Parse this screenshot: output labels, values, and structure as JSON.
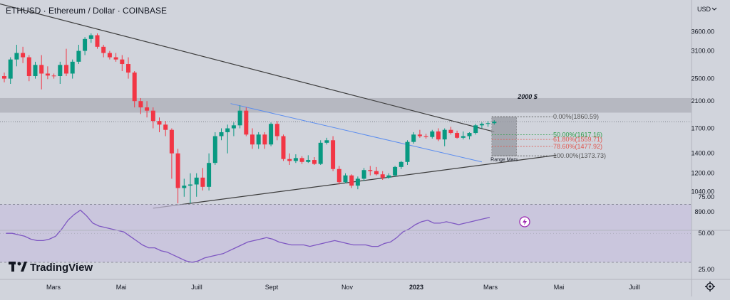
{
  "header": {
    "title": "ETHUSD · Ethereum / Dollar · COINBASE",
    "currency": "USD"
  },
  "logo": {
    "text": "TradingView"
  },
  "colors": {
    "up": "#089981",
    "down": "#f23645",
    "trendline": "#3d3d3d",
    "channel": "#5b8def",
    "rsi": "#7e57c2",
    "zone": "#b2b5be"
  },
  "chart_data": {
    "type": "candlestick",
    "price_axis": {
      "scale": "log",
      "ticks": [
        3600,
        3100,
        2500,
        2100,
        1700,
        1400,
        1200,
        1040,
        890
      ],
      "tick_labels": [
        "3600.00",
        "3100.00",
        "2500.00",
        "2100.00",
        "1700.00",
        "1400.00",
        "1200.00",
        "1040.00",
        "890.00"
      ],
      "ylim": [
        775,
        4600
      ]
    },
    "time_axis": {
      "labels": [
        "Mars",
        "Mai",
        "Juill",
        "Sept",
        "Nov",
        "2023",
        "Mars",
        "Mai",
        "Juill"
      ],
      "bold": [
        false,
        false,
        false,
        false,
        false,
        true,
        false,
        false,
        false
      ]
    },
    "candles": [
      [
        2550,
        2620,
        2430,
        2500
      ],
      [
        2500,
        2950,
        2400,
        2900
      ],
      [
        2900,
        3250,
        2750,
        3050
      ],
      [
        3050,
        3200,
        2820,
        2950
      ],
      [
        2950,
        3000,
        2450,
        2550
      ],
      [
        2550,
        2850,
        2500,
        2780
      ],
      [
        2780,
        3000,
        2300,
        2600
      ],
      [
        2600,
        2750,
        2490,
        2560
      ],
      [
        2560,
        2600,
        2500,
        2550
      ],
      [
        2550,
        2850,
        2400,
        2780
      ],
      [
        2780,
        3150,
        2550,
        2600
      ],
      [
        2600,
        2900,
        2500,
        2850
      ],
      [
        2850,
        3250,
        2800,
        3100
      ],
      [
        3100,
        3450,
        3000,
        3400
      ],
      [
        3400,
        3550,
        3300,
        3500
      ],
      [
        3500,
        3550,
        3150,
        3200
      ],
      [
        3200,
        3250,
        2950,
        3050
      ],
      [
        3050,
        3100,
        2900,
        2950
      ],
      [
        2950,
        3050,
        2850,
        2900
      ],
      [
        2900,
        3000,
        2650,
        2800
      ],
      [
        2800,
        2950,
        2500,
        2620
      ],
      [
        2620,
        2650,
        2000,
        2100
      ],
      [
        2100,
        2150,
        1900,
        2000
      ],
      [
        2000,
        2100,
        1850,
        1950
      ],
      [
        1950,
        2000,
        1700,
        1800
      ],
      [
        1800,
        1850,
        1650,
        1750
      ],
      [
        1750,
        1800,
        1600,
        1680
      ],
      [
        1680,
        1700,
        1150,
        1400
      ],
      [
        1400,
        1450,
        950,
        1070
      ],
      [
        1070,
        1150,
        1000,
        1090
      ],
      [
        1090,
        1200,
        950,
        1100
      ],
      [
        1100,
        1200,
        1000,
        1160
      ],
      [
        1160,
        1250,
        1050,
        1080
      ],
      [
        1080,
        1400,
        1050,
        1300
      ],
      [
        1300,
        1650,
        1280,
        1600
      ],
      [
        1600,
        1700,
        1550,
        1650
      ],
      [
        1650,
        1750,
        1400,
        1700
      ],
      [
        1700,
        1780,
        1600,
        1740
      ],
      [
        1740,
        2030,
        1700,
        1950
      ],
      [
        1950,
        2000,
        1600,
        1620
      ],
      [
        1620,
        1700,
        1450,
        1500
      ],
      [
        1500,
        1650,
        1450,
        1620
      ],
      [
        1620,
        1650,
        1450,
        1500
      ],
      [
        1500,
        1780,
        1480,
        1760
      ],
      [
        1760,
        1800,
        1550,
        1600
      ],
      [
        1600,
        1620,
        1320,
        1340
      ],
      [
        1340,
        1400,
        1280,
        1320
      ],
      [
        1320,
        1390,
        1300,
        1350
      ],
      [
        1350,
        1370,
        1290,
        1310
      ],
      [
        1310,
        1380,
        1300,
        1330
      ],
      [
        1330,
        1360,
        1280,
        1290
      ],
      [
        1290,
        1550,
        1280,
        1520
      ],
      [
        1520,
        1580,
        1500,
        1550
      ],
      [
        1550,
        1600,
        1220,
        1240
      ],
      [
        1240,
        1270,
        1100,
        1120
      ],
      [
        1120,
        1200,
        1110,
        1180
      ],
      [
        1180,
        1190,
        1070,
        1090
      ],
      [
        1090,
        1170,
        1060,
        1150
      ],
      [
        1150,
        1250,
        1130,
        1230
      ],
      [
        1230,
        1270,
        1180,
        1220
      ],
      [
        1220,
        1260,
        1180,
        1190
      ],
      [
        1190,
        1220,
        1140,
        1160
      ],
      [
        1160,
        1200,
        1150,
        1180
      ],
      [
        1180,
        1270,
        1170,
        1260
      ],
      [
        1260,
        1320,
        1240,
        1310
      ],
      [
        1310,
        1550,
        1280,
        1530
      ],
      [
        1530,
        1650,
        1510,
        1620
      ],
      [
        1620,
        1680,
        1580,
        1600
      ],
      [
        1600,
        1630,
        1570,
        1590
      ],
      [
        1590,
        1680,
        1570,
        1660
      ],
      [
        1660,
        1700,
        1540,
        1560
      ],
      [
        1560,
        1700,
        1480,
        1680
      ],
      [
        1680,
        1720,
        1620,
        1640
      ],
      [
        1640,
        1670,
        1570,
        1580
      ],
      [
        1580,
        1660,
        1560,
        1600
      ],
      [
        1600,
        1650,
        1560,
        1640
      ],
      [
        1640,
        1760,
        1620,
        1740
      ],
      [
        1740,
        1780,
        1700,
        1760
      ],
      [
        1760,
        1800,
        1720,
        1770
      ],
      [
        1770,
        1810,
        1750,
        1790
      ]
    ],
    "resistance_zone": {
      "low": 1920,
      "high": 2150
    },
    "annotations": [
      {
        "label": "2000 $",
        "price": 2150
      },
      {
        "label": "Range Mars",
        "price": 1340
      }
    ],
    "fibonacci": [
      {
        "label": "0.00%(1860.59)",
        "price": 1860.59,
        "color": "#555555"
      },
      {
        "label": "50.00%(1617.16)",
        "price": 1617.16,
        "color": "#2e9f4a"
      },
      {
        "label": "61.80%(1559.71)",
        "price": 1559.71,
        "color": "#e0574f"
      },
      {
        "label": "78.60%(1477.92)",
        "price": 1477.92,
        "color": "#e0574f"
      },
      {
        "label": "100.00%(1373.73)",
        "price": 1373.73,
        "color": "#555555"
      }
    ],
    "rsi": {
      "ticks": [
        75,
        50,
        25
      ],
      "tick_labels": [
        "75.00",
        "50.00",
        "25.00"
      ],
      "levels": [
        70,
        30
      ],
      "values": [
        50,
        50,
        49,
        48,
        46,
        45,
        45,
        46,
        48,
        53,
        59,
        63,
        66,
        62,
        57,
        55,
        54,
        53,
        52,
        51,
        48,
        45,
        42,
        40,
        40,
        38,
        37,
        35,
        33,
        31,
        30,
        31,
        33,
        34,
        35,
        36,
        38,
        40,
        42,
        44,
        45,
        46,
        47,
        46,
        44,
        43,
        42,
        42,
        42,
        41,
        42,
        43,
        44,
        45,
        44,
        43,
        42,
        42,
        42,
        41,
        41,
        43,
        44,
        47,
        51,
        53,
        56,
        58,
        59,
        57,
        57,
        58,
        57,
        56,
        57,
        58,
        59,
        60,
        61
      ]
    }
  }
}
